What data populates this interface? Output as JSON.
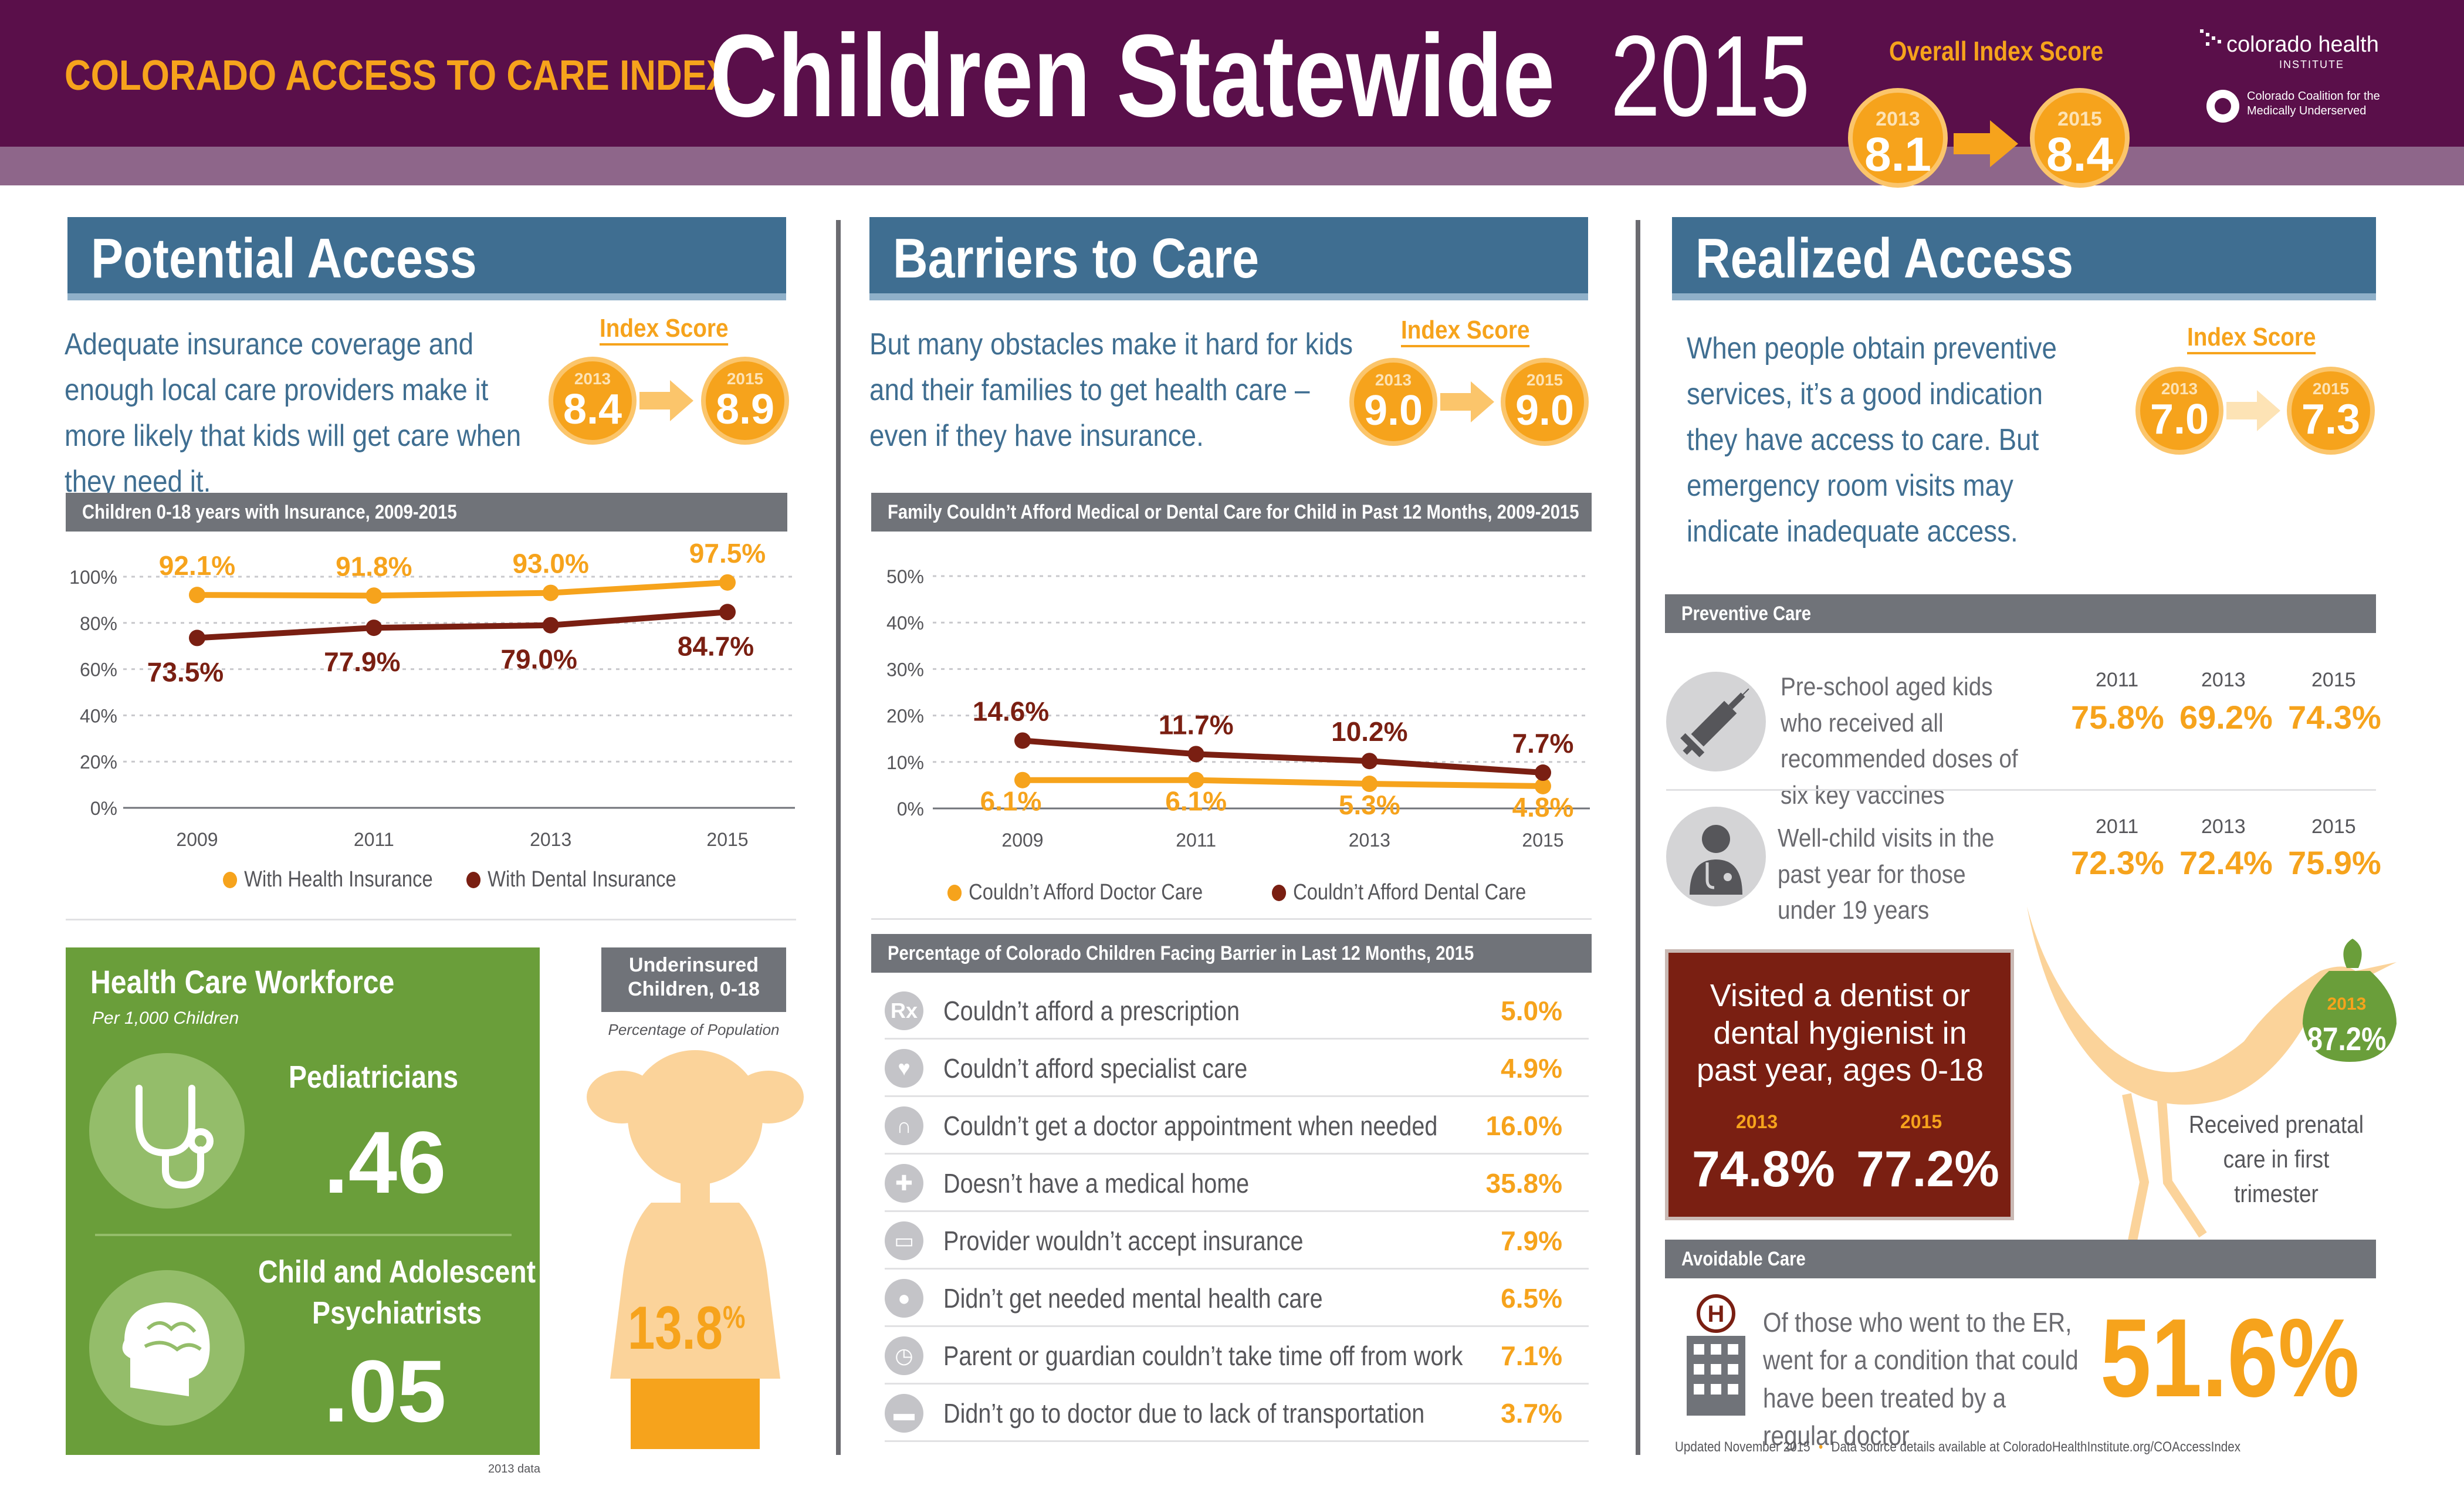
{
  "header": {
    "index_name": "COLORADO ACCESS TO CARE INDEX",
    "title": "Children Statewide",
    "year": "2015",
    "overall_label": "Overall Index Score",
    "overall_from_year": "2013",
    "overall_from": "8.1",
    "overall_to_year": "2015",
    "overall_to": "8.4",
    "logo_chi": "colorado health",
    "logo_chi_sub": "INSTITUTE",
    "logo_ccmu": "Colorado Coalition for the Medically Underserved"
  },
  "potential": {
    "title": "Potential Access",
    "intro": "Adequate insurance coverage and enough local care providers make it more likely that kids will get care when they need it.",
    "index_label": "Index Score",
    "from_year": "2013",
    "from": "8.4",
    "to_year": "2015",
    "to": "8.9",
    "chart_title": "Children 0-18 years with Insurance, 2009-2015",
    "workforce_title": "Health Care Workforce",
    "workforce_sub": "Per 1,000 Children",
    "pediatricians_label": "Pediatricians",
    "pediatricians_value": ".46",
    "psych_label_1": "Child and Adolescent",
    "psych_label_2": "Psychiatrists",
    "psych_value": ".05",
    "workforce_note": "2013 data",
    "underinsured_title": "Underinsured Children, 0-18",
    "underinsured_sub": "Percentage of Population",
    "underinsured_value": "13.8",
    "underinsured_unit": "%"
  },
  "barriers": {
    "title": "Barriers to Care",
    "intro": "But many obstacles make it hard for kids and their families to get health care – even if they have insurance.",
    "index_label": "Index Score",
    "from_year": "2013",
    "from": "9.0",
    "to_year": "2015",
    "to": "9.0",
    "chart_title": "Family Couldn’t Afford Medical or Dental Care for Child in Past 12 Months, 2009-2015",
    "list_title": "Percentage of Colorado Children Facing Barrier in Last 12 Months, 2015",
    "list": [
      {
        "icon": "Rx",
        "label": "Couldn’t afford a prescription",
        "value": "5.0%"
      },
      {
        "icon": "♥",
        "label": "Couldn’t afford specialist care",
        "value": "4.9%"
      },
      {
        "icon": "∩",
        "label": "Couldn’t get a doctor appointment when needed",
        "value": "16.0%"
      },
      {
        "icon": "✚",
        "label": "Doesn’t have a medical home",
        "value": "35.8%"
      },
      {
        "icon": "▭",
        "label": "Provider wouldn’t accept insurance",
        "value": "7.9%"
      },
      {
        "icon": "●",
        "label": "Didn’t get needed mental health care",
        "value": "6.5%"
      },
      {
        "icon": "◷",
        "label": "Parent or guardian couldn’t take time off from work",
        "value": "7.1%"
      },
      {
        "icon": "▬",
        "label": "Didn’t go to doctor due to lack of transportation",
        "value": "3.7%"
      }
    ]
  },
  "realized": {
    "title": "Realized Access",
    "intro": "When people obtain preventive services, it’s a good indication they have access to care. But emergency room visits may indicate inadequate access.",
    "index_label": "Index Score",
    "from_year": "2013",
    "from": "7.0",
    "to_year": "2015",
    "to": "7.3",
    "preventive_title": "Preventive Care",
    "vaccines_text": "Pre-school aged kids who received all recommended doses of six key vaccines",
    "vaccines_years": [
      "2011",
      "2013",
      "2015"
    ],
    "vaccines_values": [
      "75.8%",
      "69.2%",
      "74.3%"
    ],
    "wellchild_text": "Well-child visits in the past year for those under 19 years",
    "wellchild_years": [
      "2011",
      "2013",
      "2015"
    ],
    "wellchild_values": [
      "72.3%",
      "72.4%",
      "75.9%"
    ],
    "dentist_text": "Visited a dentist  or dental hygienist in past year, ages 0-18",
    "dentist_years": [
      "2013",
      "2015"
    ],
    "dentist_values": [
      "74.8%",
      "77.2%"
    ],
    "prenatal_year": "2013",
    "prenatal_value": "87.2%",
    "prenatal_text": "Received prenatal care in first trimester",
    "avoidable_title": "Avoidable  Care",
    "er_text": "Of those who went to the ER, went for a condition that could have been treated by a regular doctor",
    "er_value": "51.6%",
    "footer_updated": "Updated November 2015",
    "footer_bullet": "•",
    "footer_source": "Data source details available at ColoradoHealthInstitute.org/COAccessIndex"
  },
  "colors": {
    "purple": "#5a0f4a",
    "orange": "#f6a31c",
    "maroon": "#7a1f12",
    "blue": "#3f6e91",
    "green": "#6a9e3a"
  },
  "chart_data": [
    {
      "type": "line",
      "title": "Children 0-18 years with Insurance, 2009-2015",
      "x": [
        "2009",
        "2011",
        "2013",
        "2015"
      ],
      "series": [
        {
          "name": "With Health Insurance",
          "values": [
            92.1,
            91.8,
            93.0,
            97.5
          ],
          "labels": [
            "92.1%",
            "91.8%",
            "93.0%",
            "97.5%"
          ],
          "color": "#f6a31c"
        },
        {
          "name": "With Dental Insurance",
          "values": [
            73.5,
            77.9,
            79.0,
            84.7
          ],
          "labels": [
            "73.5%",
            "77.9%",
            "79.0%",
            "84.7%"
          ],
          "color": "#7a1f12"
        }
      ],
      "yticks": [
        "0%",
        "20%",
        "40%",
        "60%",
        "80%",
        "100%"
      ],
      "ylim": [
        0,
        100
      ],
      "legend": "bottom"
    },
    {
      "type": "line",
      "title": "Family Couldn’t Afford Medical or Dental Care for Child in Past 12 Months, 2009-2015",
      "x": [
        "2009",
        "2011",
        "2013",
        "2015"
      ],
      "series": [
        {
          "name": "Couldn’t Afford Doctor Care",
          "values": [
            6.1,
            6.1,
            5.3,
            4.8
          ],
          "labels": [
            "6.1%",
            "6.1%",
            "5.3%",
            "4.8%"
          ],
          "color": "#f6a31c"
        },
        {
          "name": "Couldn’t Afford Dental Care",
          "values": [
            14.6,
            11.7,
            10.2,
            7.7
          ],
          "labels": [
            "14.6%",
            "11.7%",
            "10.2%",
            "7.7%"
          ],
          "color": "#7a1f12"
        }
      ],
      "yticks": [
        "0%",
        "10%",
        "20%",
        "30%",
        "40%",
        "50%"
      ],
      "ylim": [
        0,
        50
      ],
      "legend": "bottom"
    }
  ]
}
